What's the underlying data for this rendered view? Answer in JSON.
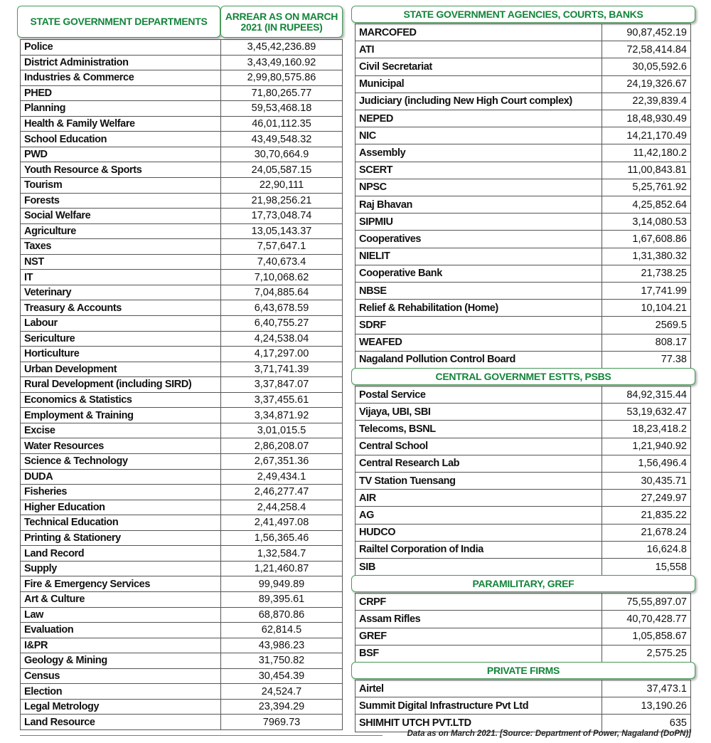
{
  "left": {
    "headers": [
      "STATE GOVERNMENT DEPARTMENTS",
      "ARREAR AS ON MARCH 2021 (IN RUPEES)"
    ],
    "rows": [
      [
        "Police",
        "3,45,42,236.89"
      ],
      [
        "District Administration",
        "3,43,49,160.92"
      ],
      [
        "Industries & Commerce",
        "2,99,80,575.86"
      ],
      [
        "PHED",
        "71,80,265.77"
      ],
      [
        "Planning",
        "59,53,468.18"
      ],
      [
        "Health & Family Welfare",
        "46,01,112.35"
      ],
      [
        "School Education",
        "43,49,548.32"
      ],
      [
        "PWD",
        "30,70,664.9"
      ],
      [
        "Youth Resource & Sports",
        "24,05,587.15"
      ],
      [
        "Tourism",
        "22,90,111"
      ],
      [
        "Forests",
        "21,98,256.21"
      ],
      [
        "Social Welfare",
        "17,73,048.74"
      ],
      [
        "Agriculture",
        "13,05,143.37"
      ],
      [
        "Taxes",
        "7,57,647.1"
      ],
      [
        "NST",
        "7,40,673.4"
      ],
      [
        "IT",
        "7,10,068.62"
      ],
      [
        "Veterinary",
        "7,04,885.64"
      ],
      [
        "Treasury & Accounts",
        "6,43,678.59"
      ],
      [
        "Labour",
        "6,40,755.27"
      ],
      [
        "Sericulture",
        "4,24,538.04"
      ],
      [
        "Horticulture",
        "4,17,297.00"
      ],
      [
        "Urban Development",
        "3,71,741.39"
      ],
      [
        "Rural Development (including SIRD)",
        "3,37,847.07"
      ],
      [
        "Economics & Statistics",
        "3,37,455.61"
      ],
      [
        "Employment & Training",
        "3,34,871.92"
      ],
      [
        "Excise",
        "3,01,015.5"
      ],
      [
        "Water Resources",
        "2,86,208.07"
      ],
      [
        "Science & Technology",
        "2,67,351.36"
      ],
      [
        "DUDA",
        "2,49,434.1"
      ],
      [
        "Fisheries",
        "2,46,277.47"
      ],
      [
        "Higher Education",
        "2,44,258.4"
      ],
      [
        "Technical Education",
        "2,41,497.08"
      ],
      [
        "Printing & Stationery",
        "1,56,365.46"
      ],
      [
        "Land Record",
        "1,32,584.7"
      ],
      [
        "Supply",
        "1,21,460.87"
      ],
      [
        "Fire & Emergency Services",
        "99,949.89"
      ],
      [
        "Art & Culture",
        "89,395.61"
      ],
      [
        "Law",
        "68,870.86"
      ],
      [
        "Evaluation",
        "62,814.5"
      ],
      [
        "I&PR",
        "43,986.23"
      ],
      [
        "Geology & Mining",
        "31,750.82"
      ],
      [
        "Census",
        "30,454.39"
      ],
      [
        "Election",
        "24,524.7"
      ],
      [
        "Legal Metrology",
        "23,394.29"
      ],
      [
        "Land Resource",
        "7969.73"
      ]
    ]
  },
  "sections": [
    {
      "title": "STATE GOVERNMENT AGENCIES, COURTS, BANKS",
      "rows": [
        [
          "MARCOFED",
          "90,87,452.19"
        ],
        [
          "ATI",
          "72,58,414.84"
        ],
        [
          "Civil Secretariat",
          "30,05,592.6"
        ],
        [
          "Municipal",
          "24,19,326.67"
        ],
        [
          "Judiciary (including New High Court complex)",
          "22,39,839.4"
        ],
        [
          "NEPED",
          "18,48,930.49"
        ],
        [
          "NIC",
          "14,21,170.49"
        ],
        [
          "Assembly",
          "11,42,180.2"
        ],
        [
          "SCERT",
          "11,00,843.81"
        ],
        [
          "NPSC",
          "5,25,761.92"
        ],
        [
          "Raj Bhavan",
          "4,25,852.64"
        ],
        [
          "SIPMIU",
          "3,14,080.53"
        ],
        [
          "Cooperatives",
          "1,67,608.86"
        ],
        [
          "NIELIT",
          "1,31,380.32"
        ],
        [
          "Cooperative Bank",
          "21,738.25"
        ],
        [
          "NBSE",
          "17,741.99"
        ],
        [
          "Relief & Rehabilitation (Home)",
          "10,104.21"
        ],
        [
          "SDRF",
          "2569.5"
        ],
        [
          "WEAFED",
          "808.17"
        ],
        [
          "Nagaland Pollution Control Board",
          "77.38"
        ]
      ]
    },
    {
      "title": "CENTRAL GOVERNMET ESTTS, PSBS",
      "rows": [
        [
          "Postal Service",
          "84,92,315.44"
        ],
        [
          "Vijaya, UBI, SBI",
          "53,19,632.47"
        ],
        [
          "Telecoms, BSNL",
          "18,23,418.2"
        ],
        [
          "Central School",
          "1,21,940.92"
        ],
        [
          "Central Research Lab",
          "1,56,496.4"
        ],
        [
          "TV Station Tuensang",
          "30,435.71"
        ],
        [
          "AIR",
          "27,249.97"
        ],
        [
          "AG",
          "21,835.22"
        ],
        [
          "HUDCO",
          "21,678.24"
        ],
        [
          "Railtel Corporation of India",
          "16,624.8"
        ],
        [
          "SIB",
          "15,558"
        ]
      ]
    },
    {
      "title": "PARAMILITARY, GREF",
      "rows": [
        [
          "CRPF",
          "75,55,897.07"
        ],
        [
          "Assam Rifles",
          "40,70,428.77"
        ],
        [
          "GREF",
          "1,05,858.67"
        ],
        [
          "BSF",
          "2,575.25"
        ]
      ]
    },
    {
      "title": "PRIVATE FIRMS",
      "rows": [
        [
          "Airtel",
          "37,473.1"
        ],
        [
          "Summit Digital Infrastructure Pvt Ltd",
          "13,190.26"
        ],
        [
          "SHIMHIT UTCH PVT.LTD",
          "635"
        ]
      ]
    }
  ],
  "footer": "Data as on March 2021. [Source: Department of Power, Nagaland (DoPN)]"
}
